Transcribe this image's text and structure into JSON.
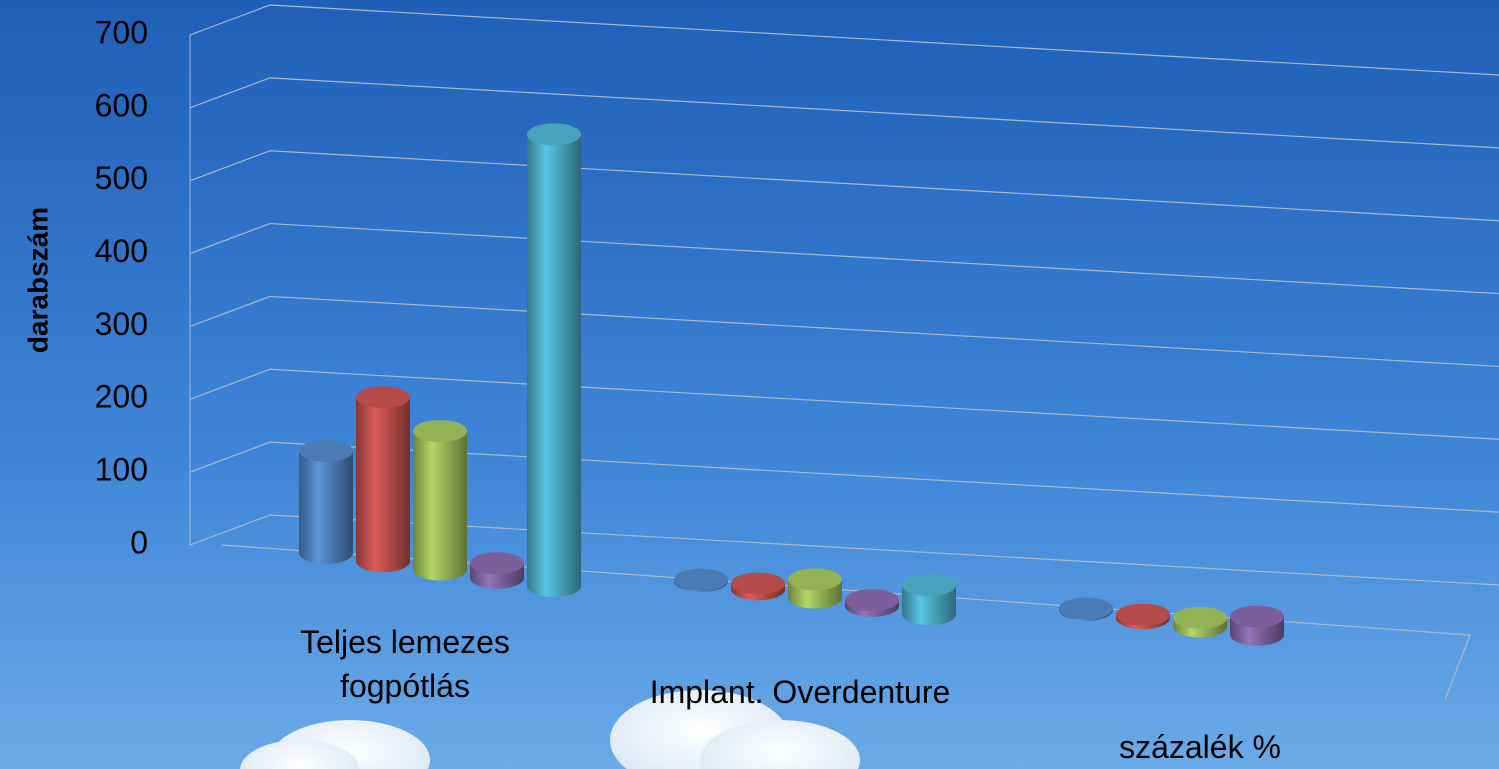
{
  "chart_data": {
    "type": "bar",
    "y_label": "darabszám",
    "categories": [
      "Teljes lemezes fogpótlás",
      "Implant. Overdenture",
      "százalék %"
    ],
    "series": [
      {
        "color": "#4f81bd",
        "values": [
          140,
          2,
          2
        ]
      },
      {
        "color": "#c0504d",
        "values": [
          225,
          8,
          5
        ]
      },
      {
        "color": "#9bbb59",
        "values": [
          190,
          25,
          12
        ]
      },
      {
        "color": "#8064a2",
        "values": [
          20,
          8,
          25
        ]
      },
      {
        "color": "#4bacc6",
        "values": [
          620,
          40,
          null
        ]
      }
    ],
    "ylim": [
      0,
      700
    ],
    "yticks": [
      0,
      100,
      200,
      300,
      400,
      500,
      600,
      700
    ],
    "grid": true
  }
}
